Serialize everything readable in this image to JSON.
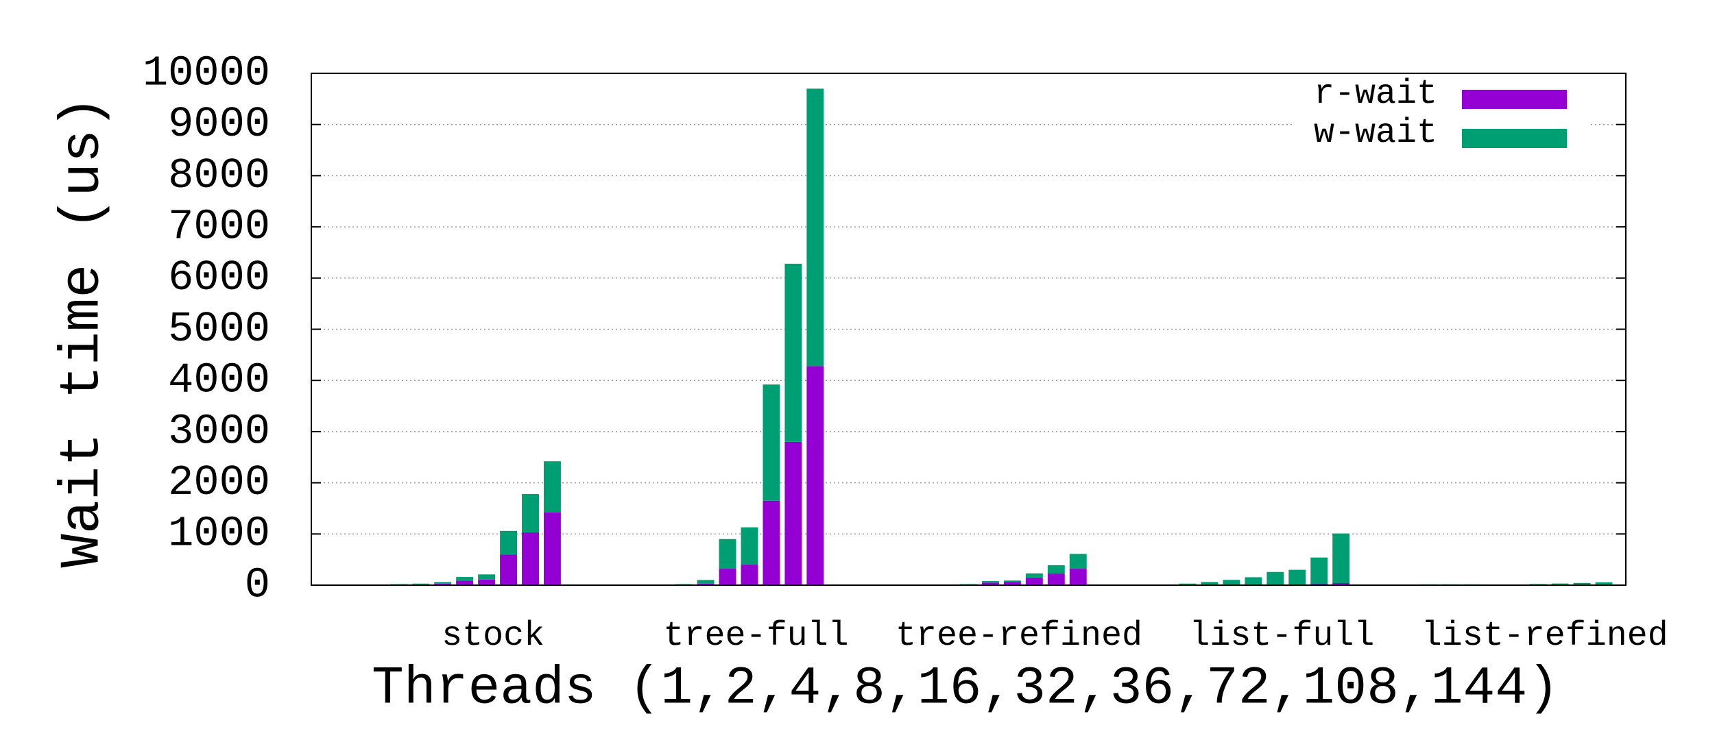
{
  "chart_data": {
    "type": "bar",
    "stacked": true,
    "xlabel": "Threads (1,2,4,8,16,32,36,72,108,144)",
    "ylabel": "Wait time (us)",
    "categories": [
      null,
      null,
      null,
      null,
      null,
      null,
      null,
      "stock",
      null,
      null,
      null,
      null,
      null,
      null,
      null,
      null,
      null,
      "tree-full",
      null,
      null,
      null,
      null,
      null,
      null,
      null,
      null,
      null,
      "tree-refined",
      null,
      null,
      null,
      null,
      null,
      null,
      null,
      null,
      null,
      "list-full",
      null,
      null,
      null,
      null,
      null,
      null,
      null,
      null,
      null,
      "list-refined",
      null,
      null
    ],
    "series": [
      {
        "name": "r-wait",
        "color": "#9400d3",
        "values": [
          0,
          5,
          10,
          15,
          30,
          90,
          110,
          600,
          1030,
          1420,
          0,
          5,
          5,
          10,
          30,
          320,
          400,
          1650,
          2800,
          4280,
          0,
          2,
          2,
          5,
          10,
          50,
          60,
          140,
          230,
          320,
          0,
          0,
          0,
          2,
          3,
          5,
          8,
          10,
          20,
          40,
          0,
          1,
          1,
          1,
          1,
          1,
          2,
          2,
          3,
          5
        ]
      },
      {
        "name": "w-wait",
        "color": "#009e73",
        "values": [
          0,
          5,
          10,
          15,
          30,
          70,
          100,
          460,
          750,
          1000,
          0,
          5,
          5,
          10,
          70,
          580,
          730,
          2270,
          3480,
          5420,
          0,
          3,
          3,
          5,
          10,
          30,
          30,
          90,
          160,
          290,
          0,
          10,
          30,
          60,
          100,
          150,
          250,
          290,
          520,
          970,
          0,
          15,
          15,
          15,
          10,
          10,
          20,
          30,
          40,
          50
        ]
      }
    ],
    "ylim": [
      0,
      10000
    ],
    "yticks": [
      0,
      1000,
      2000,
      3000,
      4000,
      5000,
      6000,
      7000,
      8000,
      9000,
      10000
    ],
    "grid": true,
    "legend": "top-right"
  }
}
